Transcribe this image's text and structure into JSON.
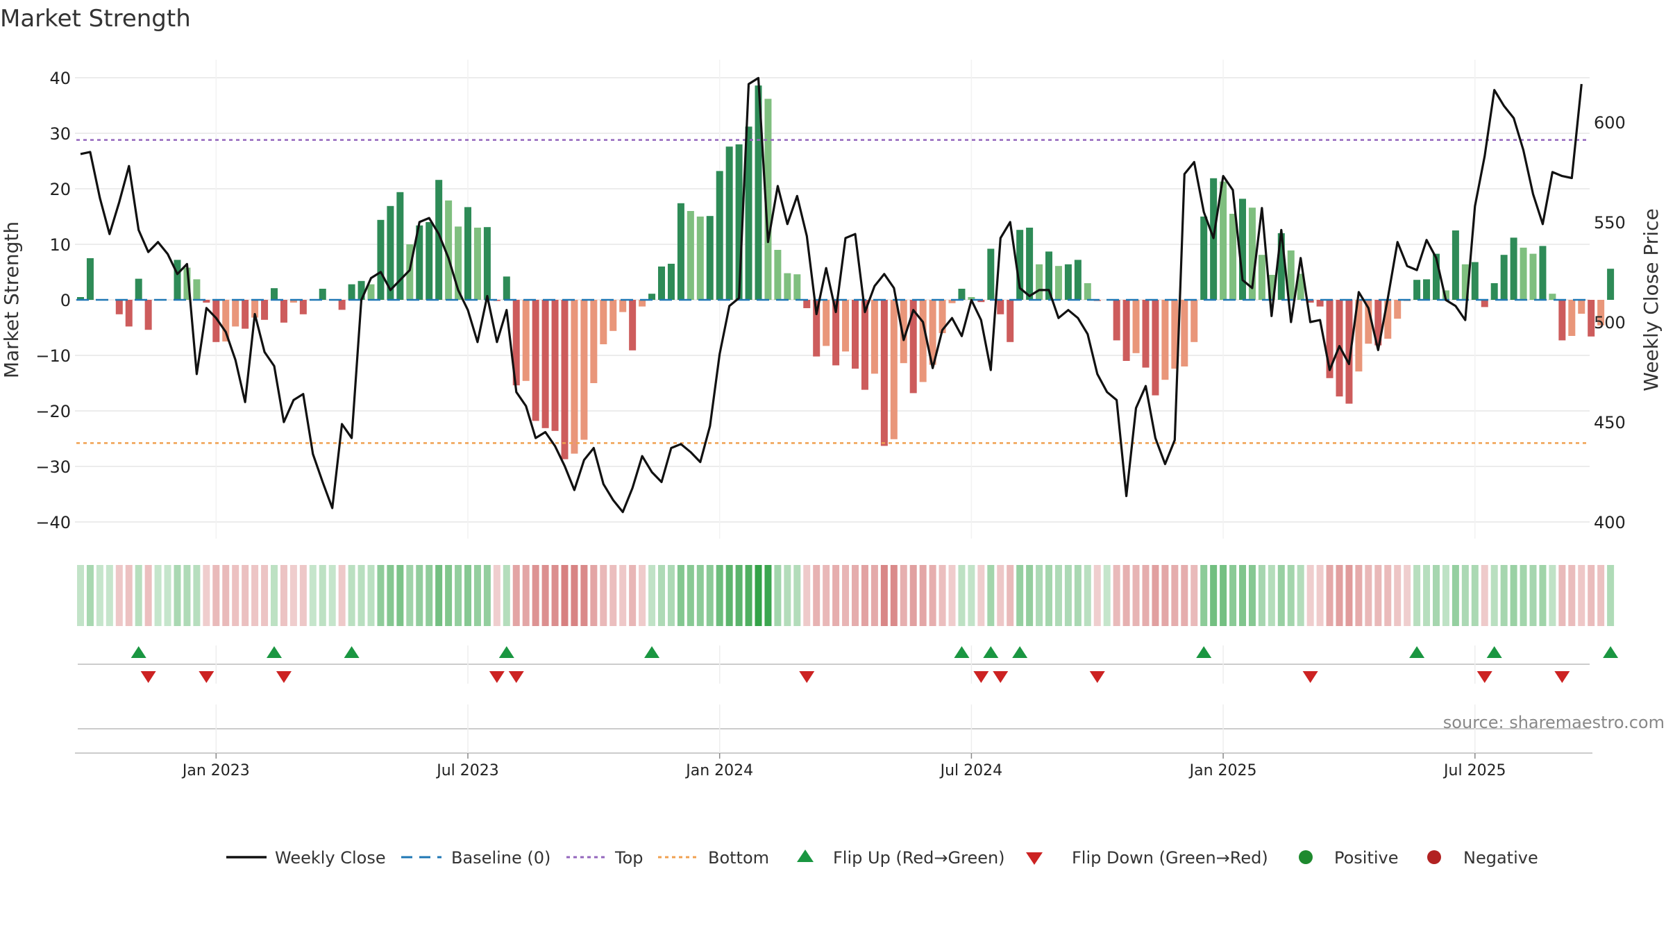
{
  "chart_data": {
    "type": "bar",
    "title": "Market Strength",
    "ylabel_left": "Market Strength",
    "ylabel_right": "Weekly Close Price",
    "ylim_left": [
      -42,
      42
    ],
    "ylim_right": [
      394.5,
      627.7
    ],
    "yticks_left": [
      40,
      30,
      20,
      10,
      0,
      -10,
      -20,
      -30,
      -40
    ],
    "ytick_labels_left": [
      "40",
      "30",
      "20",
      "10",
      "0",
      "−10",
      "−20",
      "−30",
      "−40"
    ],
    "yticks_right": [
      600,
      550,
      500,
      450,
      400
    ],
    "ytick_labels_right": [
      "600",
      "550",
      "500",
      "450",
      "400"
    ],
    "x_ticks": [
      {
        "week": 14,
        "label": "Jan 2023"
      },
      {
        "week": 40,
        "label": "Jul 2023"
      },
      {
        "week": 66,
        "label": "Jan 2024"
      },
      {
        "week": 92,
        "label": "Jul 2024"
      },
      {
        "week": 118,
        "label": "Jan 2025"
      },
      {
        "week": 144,
        "label": "Jul 2025"
      }
    ],
    "top_level": 28.8,
    "bottom_level": -25.8,
    "strength": [
      0.5,
      7.5,
      0,
      0,
      -2.6,
      -4.8,
      3.8,
      -5.4,
      0,
      0,
      7.2,
      5.8,
      3.7,
      -0.5,
      -7.6,
      -7.5,
      -4.8,
      -5.2,
      -3.2,
      -3.6,
      2.1,
      -4.1,
      -0.5,
      -2.6,
      0,
      2,
      0,
      -1.8,
      2.8,
      3.4,
      2.8,
      14.4,
      16.9,
      19.4,
      10,
      13.4,
      14,
      21.6,
      17.9,
      13.2,
      16.7,
      13,
      13.1,
      -0.2,
      4.2,
      -15.4,
      -14.6,
      -21.8,
      -23.1,
      -23.6,
      -28.7,
      -27.7,
      -25.2,
      -15,
      -8,
      -5.6,
      -2.2,
      -9.1,
      -1.2,
      1.1,
      6,
      6.5,
      17.4,
      16,
      15,
      15.1,
      23.2,
      27.6,
      28,
      31.2,
      38.6,
      36.2,
      9,
      4.8,
      4.6,
      -1.5,
      -10.2,
      -8.3,
      -11.8,
      -9.3,
      -12.4,
      -16.2,
      -13.3,
      -26.3,
      -25.1,
      -11.4,
      -16.8,
      -14.8,
      -11.7,
      -6,
      -0.6,
      2,
      0.5,
      -0.4,
      9.2,
      -2.6,
      -7.6,
      12.6,
      13,
      6.4,
      8.7,
      6.1,
      6.4,
      7.2,
      3,
      -0.2,
      0,
      -7.3,
      -11,
      -9.6,
      -12.2,
      -17.2,
      -14.4,
      -12.4,
      -12,
      -7.6,
      15,
      21.9,
      21.3,
      15.5,
      18.2,
      16.6,
      8.1,
      4.5,
      12,
      8.9,
      4.7,
      -0.5,
      -1.2,
      -14.1,
      -17.4,
      -18.7,
      -12.9,
      -7.9,
      -8.2,
      -7,
      -3.4,
      -0.2,
      3.6,
      3.7,
      8.3,
      1.7,
      12.5,
      6.4,
      6.8,
      -1.3,
      3,
      8.1,
      11.2,
      9.4,
      8.3,
      9.7,
      1.1,
      -7.3,
      -6.5,
      -2.5,
      -6.6,
      -4.6,
      5.6
    ],
    "weekly_close": [
      584,
      585,
      562,
      544,
      560,
      578,
      546,
      535,
      540,
      534,
      524,
      529,
      474,
      507,
      502,
      495,
      481,
      460,
      504,
      485,
      478,
      450,
      461,
      464,
      434,
      420,
      407,
      449,
      442,
      511,
      522,
      525,
      516,
      521,
      526,
      550,
      552,
      544,
      532,
      516,
      506,
      490,
      513,
      490,
      506,
      465,
      458,
      442,
      445,
      438,
      428,
      416,
      431,
      437,
      419,
      411,
      405,
      417,
      433,
      425,
      420,
      437,
      439,
      435,
      430,
      448,
      484,
      508,
      512,
      619,
      622,
      540,
      568,
      549,
      563,
      543,
      504,
      527,
      505,
      542,
      544,
      505,
      518,
      524,
      517,
      491,
      506,
      500,
      477,
      496,
      502,
      493,
      511,
      501,
      476,
      542,
      550,
      517,
      513,
      516,
      516,
      502,
      506,
      502,
      494,
      474,
      465,
      461,
      413,
      457,
      468,
      442,
      429,
      441,
      574,
      580,
      555,
      542,
      573,
      566,
      521,
      517,
      557,
      503,
      546,
      500,
      532,
      500,
      501,
      476,
      488,
      479,
      515,
      507,
      486,
      512,
      540,
      528,
      526,
      541,
      532,
      511,
      508,
      501,
      558,
      583,
      616,
      608,
      602,
      586,
      564,
      549,
      575,
      573,
      572,
      619
    ]
  },
  "legend": {
    "weekly_close": "Weekly Close",
    "baseline": "Baseline (0)",
    "top": "Top",
    "bottom": "Bottom",
    "flip_up": "Flip Up (Red→Green)",
    "flip_down": "Flip Down (Green→Red)",
    "positive": "Positive",
    "negative": "Negative"
  },
  "source": "source: sharemaestro.com",
  "colors": {
    "pos_strong": "#2e8b57",
    "pos_weak": "#7fbf7f",
    "neg_strong": "#cd5c5c",
    "neg_weak": "#e9967a",
    "line": "#111111",
    "baseline": "#1f77b4",
    "top": "#9467bd",
    "bottom": "#f0a050",
    "flip_up": "#1a9641",
    "flip_down": "#cc2222",
    "positive_dot": "#1e8a2e",
    "negative_dot": "#b22222"
  }
}
